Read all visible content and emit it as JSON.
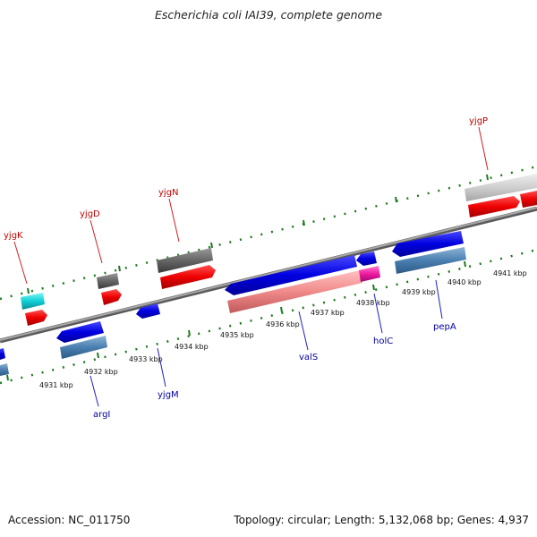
{
  "title": "Escherichia coli IAI39, complete genome",
  "footer": {
    "accession": "Accession: NC_011750",
    "summary": "Topology: circular; Length: 5,132,068 bp; Genes: 4,937"
  },
  "colors": {
    "backbone": "#8a8a8a",
    "tick": "#1e7a1e",
    "top_label": "#c00000",
    "bottom_label": "#0000a0"
  },
  "kbp_labels": [
    "4931 kbp",
    "4932 kbp",
    "4933 kbp",
    "4934 kbp",
    "4935 kbp",
    "4936 kbp",
    "4937 kbp",
    "4938 kbp",
    "4939 kbp",
    "4940 kbp",
    "4941 kbp"
  ],
  "top_genes": [
    "yjgK",
    "yjgD",
    "yjgN",
    "yjgP"
  ],
  "bottom_genes": [
    "argI",
    "yjgM",
    "valS",
    "holC",
    "pepA"
  ]
}
